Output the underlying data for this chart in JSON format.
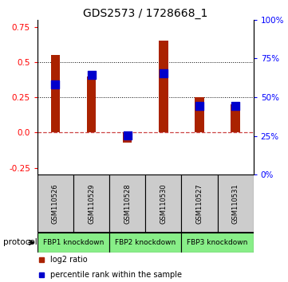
{
  "title": "GDS2573 / 1728668_1",
  "samples": [
    "GSM110526",
    "GSM110529",
    "GSM110528",
    "GSM110530",
    "GSM110527",
    "GSM110531"
  ],
  "log2_ratio": [
    0.55,
    0.4,
    -0.07,
    0.65,
    0.25,
    0.2
  ],
  "percentile_rank": [
    58.5,
    64.5,
    25.5,
    65.5,
    44.5,
    44.5
  ],
  "left_ylim": [
    -0.3,
    0.8
  ],
  "right_ylim": [
    0,
    100
  ],
  "left_yticks": [
    -0.25,
    0.0,
    0.25,
    0.5,
    0.75
  ],
  "right_yticks": [
    0,
    25,
    50,
    75,
    100
  ],
  "hlines": [
    0.5,
    0.25
  ],
  "protocols": [
    {
      "label": "FBP1 knockdown",
      "samples": [
        0,
        1
      ],
      "color": "#88ee88"
    },
    {
      "label": "FBP2 knockdown",
      "samples": [
        2,
        3
      ],
      "color": "#88ee88"
    },
    {
      "label": "FBP3 knockdown",
      "samples": [
        4,
        5
      ],
      "color": "#88ee88"
    }
  ],
  "bar_color": "#aa2200",
  "dot_color": "#0000cc",
  "zero_line_color": "#cc4444",
  "bar_width": 0.25,
  "dot_size": 55,
  "label_log2": "log2 ratio",
  "label_percentile": "percentile rank within the sample",
  "sample_box_color": "#cccccc",
  "fig_width": 3.61,
  "fig_height": 3.54,
  "dpi": 100
}
